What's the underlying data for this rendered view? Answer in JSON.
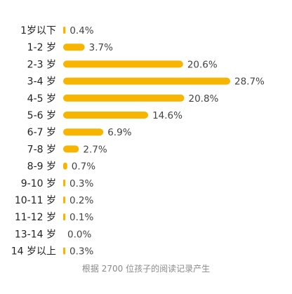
{
  "chart_data": {
    "type": "bar",
    "orientation": "horizontal",
    "categories": [
      "1岁以下",
      "1-2 岁",
      "2-3 岁",
      "3-4 岁",
      "4-5 岁",
      "5-6 岁",
      "6-7 岁",
      "7-8 岁",
      "8-9 岁",
      "9-10 岁",
      "10-11 岁",
      "11-12 岁",
      "13-14 岁",
      "14 岁以上"
    ],
    "values": [
      0.4,
      3.7,
      20.6,
      28.7,
      20.8,
      14.6,
      6.9,
      2.7,
      0.7,
      0.3,
      0.2,
      0.1,
      0.0,
      0.3
    ],
    "value_labels": [
      "0.4%",
      "3.7%",
      "20.6%",
      "28.7%",
      "20.8%",
      "14.6%",
      "6.9%",
      "2.7%",
      "0.7%",
      "0.3%",
      "0.2%",
      "0.1%",
      "0.0%",
      "0.3%"
    ],
    "caption": "根据 2700 位孩子的阅读记录产生",
    "xlim": [
      0,
      28.7
    ],
    "grid": false,
    "bar_color": "#F7B400"
  }
}
